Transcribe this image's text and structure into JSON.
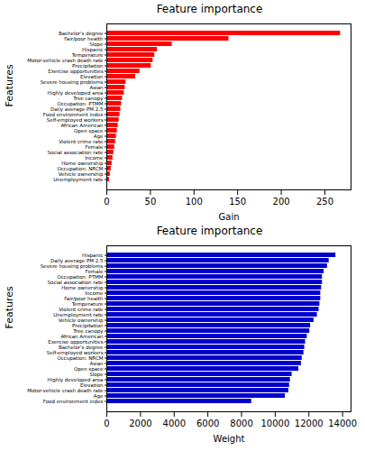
{
  "chart_data": [
    {
      "type": "bar",
      "orientation": "horizontal",
      "title": "Feature importance",
      "xlabel": "Gain",
      "ylabel": "Features",
      "categories": [
        "Unemployment rate",
        "Vehicle ownership",
        "Occupation: NRCM",
        "Home ownership",
        "Income",
        "Social association rate",
        "Female",
        "Violent crime rate",
        "Age",
        "Open space",
        "African American",
        "Self-employed workers",
        "Food environment index",
        "Daily average PM 2.5",
        "Occupation: PTMM",
        "Tree canopy",
        "Highly developed area",
        "Asian",
        "Severe housing problems",
        "Elevation",
        "Exercise opportunities",
        "Precipitation",
        "Motor-vehicle crash death rate",
        "Temperature",
        "Hispanic",
        "Slope",
        "Fair/poor health",
        "Bachelor's degree"
      ],
      "values": [
        3,
        4,
        5,
        6,
        7,
        8,
        9,
        10,
        11,
        12,
        13,
        14,
        15,
        16,
        17,
        18,
        20,
        21,
        22,
        33,
        38,
        51,
        53,
        55,
        58,
        75,
        140,
        268
      ],
      "color": "#ff0000",
      "xlim": [
        0,
        280
      ],
      "xticks": [
        0,
        50,
        100,
        150,
        200,
        250
      ],
      "grid": false
    },
    {
      "type": "bar",
      "orientation": "horizontal",
      "title": "Feature importance",
      "xlabel": "Weight",
      "ylabel": "Features",
      "categories": [
        "Food environment index",
        "Age",
        "Motor-vehicle crash death rate",
        "Elevation",
        "Highly developed area",
        "Slope",
        "Open space",
        "Asian",
        "Occupation: NRCM",
        "Self-employed workers",
        "Bachelor's degree",
        "Exercise opportunities",
        "African American",
        "Tree canopy",
        "Precipitation",
        "Vehicle ownership",
        "Unemployment rate",
        "Violent crime rate",
        "Temperature",
        "Fair/poor health",
        "Income",
        "Home ownership",
        "Social association rate",
        "Occupation: PTMM",
        "Female",
        "Severe housing problems",
        "Daily average PM 2.5",
        "Hispanic"
      ],
      "values": [
        8600,
        10600,
        10800,
        10850,
        10900,
        11000,
        11400,
        11550,
        11600,
        11700,
        11750,
        11800,
        11900,
        12050,
        12100,
        12300,
        12500,
        12600,
        12650,
        12700,
        12700,
        12750,
        12800,
        12800,
        12900,
        13100,
        13200,
        13600
      ],
      "color": "#0000cc",
      "xlim": [
        0,
        14500
      ],
      "xticks": [
        0,
        2000,
        4000,
        6000,
        8000,
        10000,
        12000,
        14000
      ],
      "grid": false
    }
  ]
}
